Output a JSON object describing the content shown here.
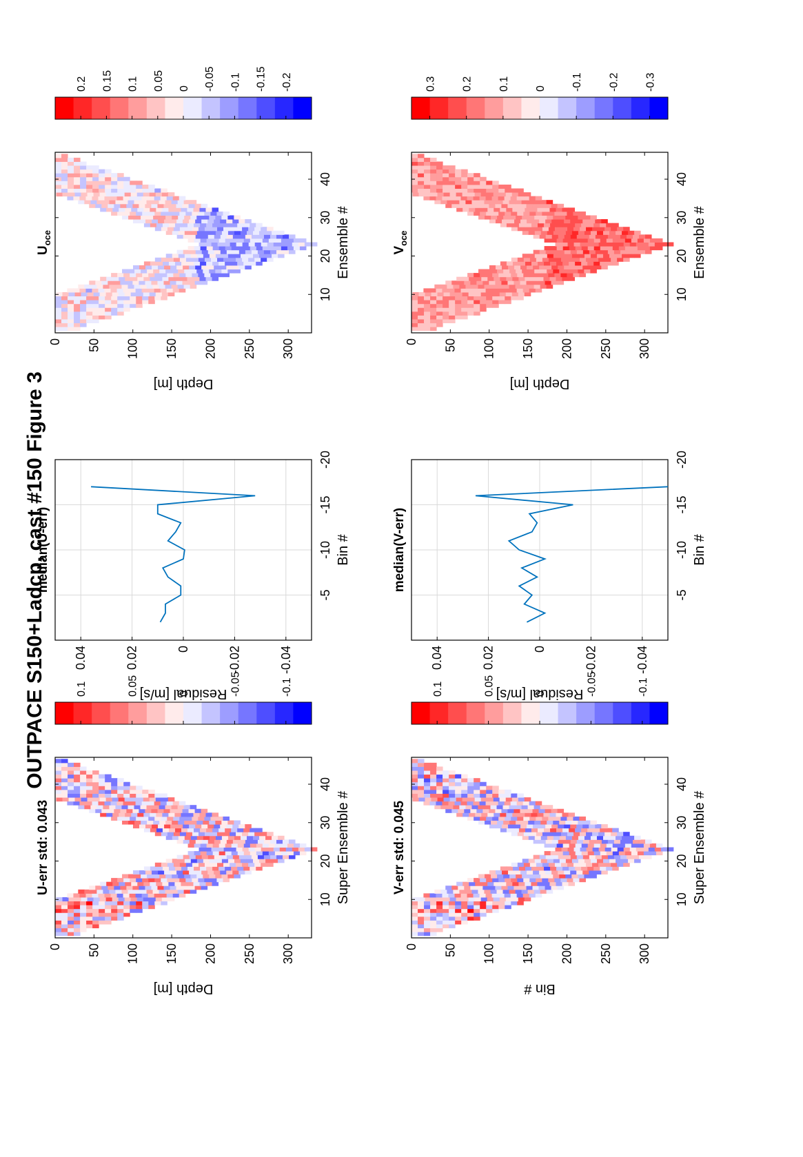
{
  "figure": {
    "title": "OUTPACE S150+Ladcp, cast #150  Figure 3",
    "orientation": "rotated 90° counter-clockwise (landscape page)"
  },
  "colors": {
    "red": "#ff0000",
    "white": "#ffffff",
    "blue": "#0000ff",
    "line": "#0072bd",
    "grid": "#d9d9d9",
    "axis": "#000000"
  },
  "chart_data": [
    {
      "id": "u_err",
      "type": "heatmap",
      "title": "U-err std: 0.043",
      "xlabel": "Super Ensemble #",
      "ylabel": "Depth [m]",
      "xticks": [
        "10",
        "20",
        "30",
        "40"
      ],
      "yticks": [
        "0",
        "50",
        "100",
        "150",
        "200",
        "250",
        "300"
      ],
      "xlim": [
        0,
        47
      ],
      "ylim": [
        0,
        330
      ],
      "colorbar": {
        "ticks": [
          "0.1",
          "0.05",
          "0",
          "-0.05",
          "-0.1"
        ],
        "range": [
          -0.125,
          0.125
        ]
      },
      "profile": "V-shape; downcast to ~325 m at ensemble 23, upcast to surface at ensemble 46",
      "color_scale": [
        -0.125,
        0.125
      ]
    },
    {
      "id": "u_median",
      "type": "line",
      "title": "median(U-err)",
      "xlabel": "Residual [m/s]",
      "ylabel": "Bin #",
      "xticks": [
        "-0.04",
        "-0.02",
        "0",
        "0.02",
        "0.04"
      ],
      "yticks": [
        "-5",
        "-10",
        "-15",
        "-20"
      ],
      "xlim": [
        -0.05,
        0.05
      ],
      "ylim": [
        -20,
        0
      ],
      "grid": true,
      "bins": [
        -2,
        -3,
        -4,
        -5,
        -6,
        -7,
        -8,
        -9,
        -10,
        -11,
        -12,
        -13,
        -14,
        -15,
        -16,
        -17
      ],
      "values": [
        0.009,
        0.007,
        0.007,
        0.001,
        0.001,
        0.006,
        0.008,
        0.0,
        -0.0005,
        0.006,
        0.003,
        0.001,
        0.01,
        0.01,
        -0.028,
        0.036
      ]
    },
    {
      "id": "u_oce",
      "type": "heatmap",
      "title": "U",
      "title_sub": "oce",
      "xlabel": "Ensemble #",
      "ylabel": "Depth [m]",
      "xticks": [
        "10",
        "20",
        "30",
        "40"
      ],
      "yticks": [
        "0",
        "50",
        "100",
        "150",
        "200",
        "250",
        "300"
      ],
      "xlim": [
        0,
        47
      ],
      "ylim": [
        0,
        330
      ],
      "colorbar": {
        "ticks": [
          "0.2",
          "0.15",
          "0.1",
          "0.05",
          "0",
          "-0.05",
          "-0.1",
          "-0.15",
          "-0.2"
        ],
        "range": [
          -0.25,
          0.25
        ]
      },
      "profile": "V-shape; weak red near surface, blue patches at mid-depth",
      "color_scale": [
        -0.25,
        0.25
      ]
    },
    {
      "id": "v_err",
      "type": "heatmap",
      "title": "V-err std: 0.045",
      "xlabel": "Super Ensemble #",
      "ylabel": "Bin #",
      "xticks": [
        "10",
        "20",
        "30",
        "40"
      ],
      "yticks": [
        "0",
        "50",
        "100",
        "150",
        "200",
        "250",
        "300"
      ],
      "xlim": [
        0,
        47
      ],
      "ylim": [
        0,
        330
      ],
      "colorbar": {
        "ticks": [
          "0.1",
          "0.05",
          "0",
          "-0.05",
          "-0.1"
        ],
        "range": [
          -0.125,
          0.125
        ]
      },
      "profile": "V-shape; red near surface early, blue column at end",
      "color_scale": [
        -0.125,
        0.125
      ]
    },
    {
      "id": "v_median",
      "type": "line",
      "title": "median(V-err)",
      "xlabel": "Residual [m/s]",
      "ylabel": "Bin #",
      "xticks": [
        "-0.04",
        "-0.02",
        "0",
        "0.02",
        "0.04"
      ],
      "yticks": [
        "-5",
        "-10",
        "-15",
        "-20"
      ],
      "xlim": [
        -0.05,
        0.05
      ],
      "ylim": [
        -20,
        0
      ],
      "grid": true,
      "bins": [
        -2,
        -3,
        -4,
        -5,
        -6,
        -7,
        -8,
        -9,
        -10,
        -11,
        -12,
        -13,
        -14,
        -15,
        -16,
        -17
      ],
      "values": [
        0.005,
        -0.002,
        0.006,
        0.003,
        0.008,
        0.001,
        0.007,
        -0.002,
        0.008,
        0.012,
        0.003,
        0.001,
        0.004,
        -0.013,
        0.025,
        -0.05
      ]
    },
    {
      "id": "v_oce",
      "type": "heatmap",
      "title": "V",
      "title_sub": "oce",
      "xlabel": "Ensemble #",
      "ylabel": "Depth [m]",
      "xticks": [
        "10",
        "20",
        "30",
        "40"
      ],
      "yticks": [
        "0",
        "50",
        "100",
        "150",
        "200",
        "250",
        "300"
      ],
      "xlim": [
        0,
        47
      ],
      "ylim": [
        0,
        330
      ],
      "colorbar": {
        "ticks": [
          "0.3",
          "0.2",
          "0.1",
          "0",
          "-0.1",
          "-0.2",
          "-0.3"
        ],
        "range": [
          -0.35,
          0.35
        ]
      },
      "profile": "V-shape; strong red throughout, stronger at depth",
      "color_scale": [
        -0.35,
        0.35
      ]
    }
  ]
}
